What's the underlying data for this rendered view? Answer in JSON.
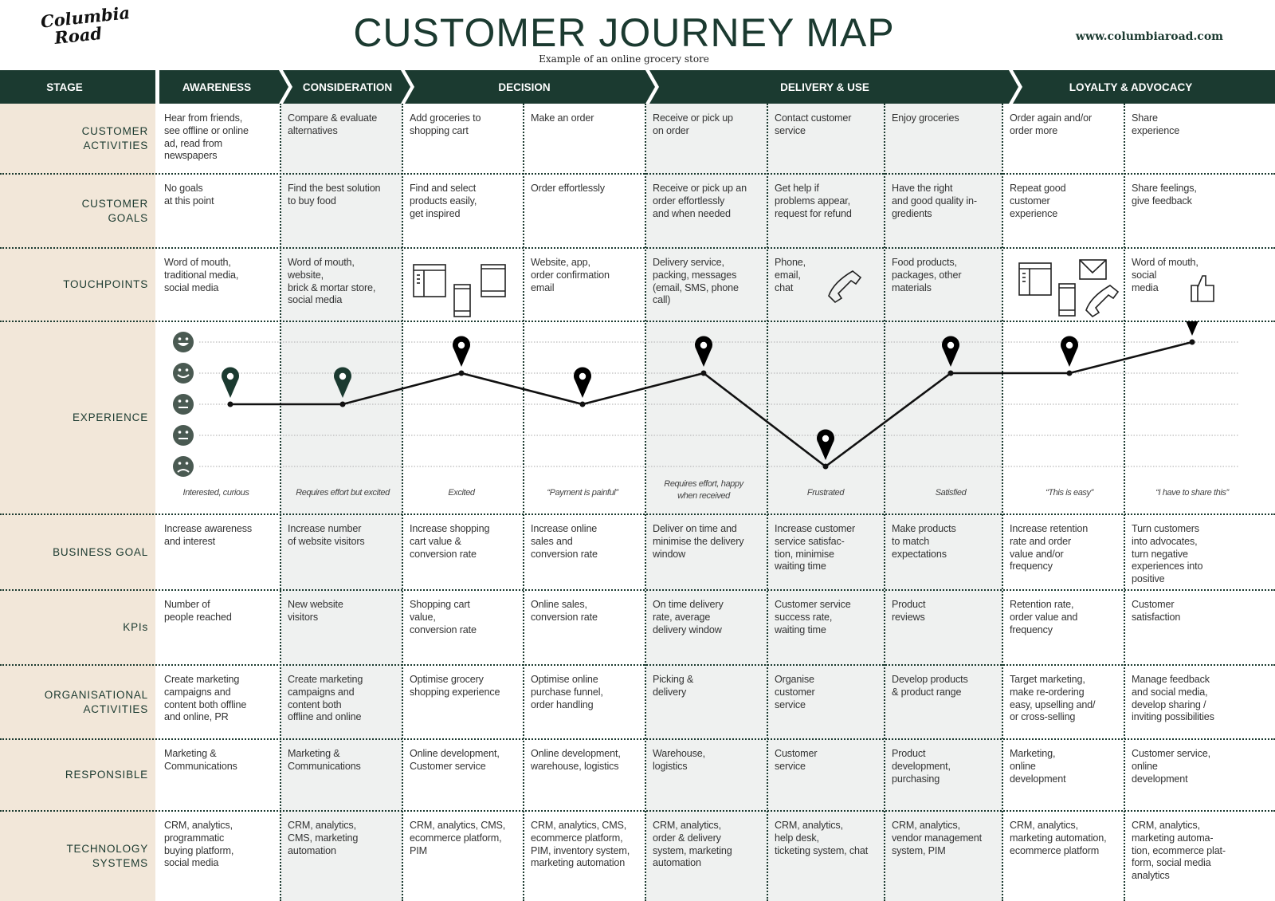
{
  "header": {
    "logo_text": "Columbia\nRoad",
    "title": "CUSTOMER JOURNEY MAP",
    "subtitle": "Example of an online grocery store",
    "url": "www.columbiaroad.com"
  },
  "colors": {
    "dark_green": "#1b3a30",
    "beige": "#f2e7d9",
    "shaded_column": "#eff1f0",
    "smiley": "#4a5a52"
  },
  "stage_label": "STAGE",
  "stages": [
    "AWARENESS",
    "CONSIDERATION",
    "DECISION",
    "DELIVERY & USE",
    "LOYALTY  & ADVOCACY"
  ],
  "rows": [
    {
      "label": "CUSTOMER\nACTIVITIES",
      "cells": [
        "Hear from friends,\nsee offline or online\nad, read from\nnewspapers",
        "Compare & evaluate\nalternatives",
        "Add groceries to\nshopping cart",
        "Make an order",
        "Receive or pick up\non order",
        "Contact customer\nservice",
        "Enjoy groceries",
        "Order again and/or\norder more",
        "Share\nexperience"
      ]
    },
    {
      "label": "CUSTOMER\nGOALS",
      "cells": [
        "No goals\nat this point",
        "Find the best solution\nto buy food",
        "Find and select\nproducts easily,\nget inspired",
        "Order effortlessly",
        "Receive or pick up an\norder effortlessly\nand when needed",
        "Get help if\nproblems appear,\nrequest for refund",
        "Have the right\nand good quality in-\ngredients",
        "Repeat good\ncustomer\nexperience",
        "Share feelings,\ngive feedback"
      ]
    },
    {
      "label": "TOUCHPOINTS",
      "cells": [
        "Word of mouth,\ntraditional media,\nsocial media",
        "Word of mouth,\nwebsite,\nbrick & mortar store,\nsocial media",
        "",
        "Website, app,\norder confirmation\nemail",
        "Delivery service,\npacking, messages\n(email, SMS, phone\ncall)",
        "Phone,\nemail,\nchat",
        "Food products,\npackages, other\nmaterials",
        "",
        "Word of mouth,\nsocial\nmedia"
      ]
    },
    {
      "label": "EXPERIENCE",
      "cells": []
    },
    {
      "label": "BUSINESS GOAL",
      "cells": [
        "Increase awareness\nand interest",
        "Increase number\nof website visitors",
        "Increase shopping\ncart value &\nconversion rate",
        "Increase online\nsales and\nconversion rate",
        "Deliver on time and\nminimise the delivery\nwindow",
        "Increase customer\nservice satisfac-\ntion, minimise\nwaiting time",
        "Make products\nto match\nexpectations",
        "Increase retention\nrate and order\nvalue and/or\nfrequency",
        "Turn customers\ninto advocates,\nturn negative\nexperiences into\npositive"
      ]
    },
    {
      "label": "KPIs",
      "cells": [
        "Number of\npeople reached",
        "New website\nvisitors",
        "Shopping cart\nvalue,\nconversion rate",
        "Online sales,\nconversion rate",
        "On time delivery\nrate, average\ndelivery window",
        "Customer service\nsuccess rate,\nwaiting time",
        "Product\nreviews",
        "Retention rate,\norder value and\nfrequency",
        "Customer\nsatisfaction"
      ]
    },
    {
      "label": "ORGANISATIONAL\nACTIVITIES",
      "cells": [
        "Create marketing\ncampaigns and\ncontent both offline\nand online, PR",
        "Create marketing\ncampaigns and\ncontent both\noffline and online",
        "Optimise grocery\nshopping experience",
        "Optimise online\npurchase funnel,\norder handling",
        "Picking &\ndelivery",
        "Organise\ncustomer\nservice",
        "Develop products\n& product range",
        "Target marketing,\nmake re-ordering\neasy, upselling and/\nor cross-selling",
        "Manage feedback\nand social media,\ndevelop sharing /\ninviting possibilities"
      ]
    },
    {
      "label": "RESPONSIBLE",
      "cells": [
        "Marketing &\nCommunications",
        "Marketing &\nCommunications",
        "Online development,\nCustomer service",
        "Online development,\nwarehouse, logistics",
        "Warehouse,\nlogistics",
        "Customer\nservice",
        "Product\ndevelopment,\npurchasing",
        "Marketing,\nonline\ndevelopment",
        "Customer service,\nonline\ndevelopment"
      ]
    },
    {
      "label": "TECHNOLOGY\nSYSTEMS",
      "cells": [
        "CRM, analytics,\nprogrammatic\nbuying platform,\nsocial media",
        "CRM, analytics,\nCMS, marketing\nautomation",
        "CRM, analytics, CMS,\necommerce platform,\nPIM",
        "CRM, analytics, CMS,\necommerce platform,\nPIM, inventory system,\nmarketing automation",
        "CRM, analytics,\norder & delivery\nsystem, marketing\nautomation",
        "CRM, analytics,\nhelp desk,\nticketing system, chat",
        "CRM, analytics,\nvendor management\nsystem, PIM",
        "CRM, analytics,\nmarketing automation,\necommerce platform",
        "CRM, analytics,\nmarketing automa-\ntion, ecommerce plat-\nform, social media\nanalytics"
      ]
    }
  ],
  "touchpoint_icons": {
    "decision_add_to_cart": [
      "browser-window-icon",
      "smartphone-icon",
      "tablet-icon"
    ],
    "contact_customer_service": [
      "telephone-icon"
    ],
    "order_again": [
      "browser-window-icon",
      "smartphone-icon",
      "envelope-icon",
      "telephone-icon"
    ],
    "share_experience": [
      "thumbs-up-icon"
    ]
  },
  "experience": {
    "scale": [
      "very happy",
      "happy",
      "neutral",
      "unhappy",
      "sad"
    ],
    "scale_range": [
      1,
      5
    ],
    "levels": [
      3,
      3,
      4,
      3,
      4,
      1,
      4,
      4,
      5
    ],
    "pin_colors": [
      "#1b3a30",
      "#1b3a30",
      "#000000",
      "#000000",
      "#000000",
      "#000000",
      "#000000",
      "#000000",
      "#000000"
    ],
    "captions": [
      "Interested, curious",
      "Requires effort but excited",
      "Excited",
      "“Payment is painful”",
      "Requires effort, happy\nwhen received",
      "Frustrated",
      "Satisfied",
      "“This is easy”",
      "“I have to share this”"
    ]
  }
}
